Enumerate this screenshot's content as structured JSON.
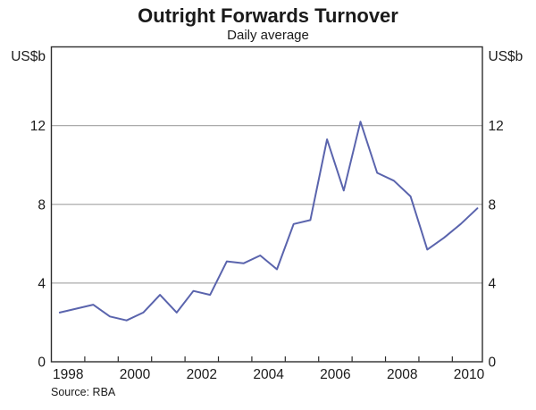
{
  "chart_data": {
    "type": "line",
    "title": "Outright Forwards Turnover",
    "subtitle": "Daily average",
    "unit_left": "US$b",
    "unit_right": "US$b",
    "source_note": "Source: RBA",
    "frequency": "semiannual",
    "ylim": [
      0,
      16
    ],
    "yticks": [
      0,
      4,
      8,
      12
    ],
    "x_axis_start": 1998,
    "x_axis_end": 2010.9,
    "x_year_labels": [
      1998,
      2000,
      2002,
      2004,
      2006,
      2008,
      2010
    ],
    "x_minor_tick_years": [
      1999,
      2000,
      2001,
      2002,
      2003,
      2004,
      2005,
      2006,
      2007,
      2008,
      2009,
      2010
    ],
    "grid": true,
    "legend_position": "none",
    "line_color": "#5a64ad",
    "grid_color": "#ababab",
    "frame_color": "#2e2e2e",
    "series": [
      {
        "name": "Outright forwards turnover, daily average (US$b)",
        "periods": [
          "1998 H1",
          "1998 H2",
          "1999 H1",
          "1999 H2",
          "2000 H1",
          "2000 H2",
          "2001 H1",
          "2001 H2",
          "2002 H1",
          "2002 H2",
          "2003 H1",
          "2003 H2",
          "2004 H1",
          "2004 H2",
          "2005 H1",
          "2005 H2",
          "2006 H1",
          "2006 H2",
          "2007 H1",
          "2007 H2",
          "2008 H1",
          "2008 H2",
          "2009 H1",
          "2009 H2",
          "2010 H1",
          "2010 H2"
        ],
        "x": [
          1998.25,
          1998.75,
          1999.25,
          1999.75,
          2000.25,
          2000.75,
          2001.25,
          2001.75,
          2002.25,
          2002.75,
          2003.25,
          2003.75,
          2004.25,
          2004.75,
          2005.25,
          2005.75,
          2006.25,
          2006.75,
          2007.25,
          2007.75,
          2008.25,
          2008.75,
          2009.25,
          2009.75,
          2010.25,
          2010.75
        ],
        "values": [
          2.5,
          2.7,
          2.9,
          2.3,
          2.1,
          2.5,
          3.4,
          2.5,
          3.6,
          3.4,
          5.1,
          5.0,
          5.4,
          4.7,
          7.0,
          7.2,
          11.3,
          8.7,
          12.2,
          9.6,
          9.2,
          8.4,
          5.7,
          6.3,
          7.0,
          7.8
        ]
      }
    ]
  }
}
